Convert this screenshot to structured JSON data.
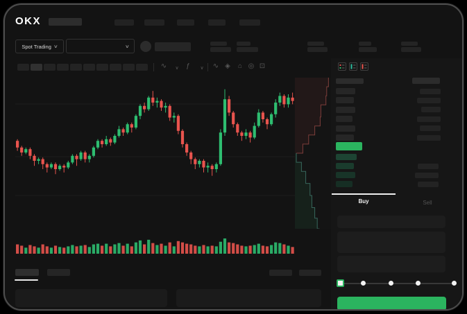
{
  "app": {
    "logo_text": "OKX"
  },
  "trade_header": {
    "market_type_label": "Spot Trading",
    "chevron_glyph": "∨"
  },
  "chart_toolbar": {
    "icons": [
      {
        "name": "curve-style-icon",
        "glyph": "∿"
      },
      {
        "name": "chevron-down-icon",
        "glyph": "∨"
      },
      {
        "name": "function-icon",
        "glyph": "ƒ"
      },
      {
        "name": "chevron-down-icon",
        "glyph": "∨"
      },
      {
        "name": "indicator-wave-icon",
        "glyph": "∿"
      },
      {
        "name": "compare-icon",
        "glyph": "◈"
      },
      {
        "name": "snapshot-icon",
        "glyph": "⌂"
      },
      {
        "name": "settings-icon",
        "glyph": "◎"
      },
      {
        "name": "fullscreen-icon",
        "glyph": "⊡"
      }
    ]
  },
  "order_form": {
    "buy_tab_label": "Buy",
    "sell_tab_label": "Sell"
  },
  "colors": {
    "up": "#2ebd70",
    "down": "#e8544e",
    "accent_green": "#2bb45f",
    "depth_ask_fill": "rgba(232,84,78,0.07)",
    "depth_ask_line": "rgba(205,95,90,0.55)",
    "depth_bid_fill": "rgba(46,189,112,0.08)",
    "depth_bid_line": "rgba(85,165,150,0.55)",
    "grid": "#1c1c1c"
  },
  "order_book": {
    "ask_rows": [
      {
        "price_w": 28,
        "amount_w": 30
      },
      {
        "price_w": 26,
        "amount_w": 34
      },
      {
        "price_w": 28,
        "amount_w": 28
      },
      {
        "price_w": 24,
        "amount_w": 34
      },
      {
        "price_w": 28,
        "amount_w": 30
      },
      {
        "price_w": 26,
        "amount_w": 34
      }
    ],
    "bid_rows": [
      {
        "price_w": 30,
        "amount_w": 0
      },
      {
        "price_w": 26,
        "amount_w": 30
      },
      {
        "price_w": 28,
        "amount_w": 34
      },
      {
        "price_w": 24,
        "amount_w": 30
      }
    ],
    "bid_colors": [
      "#1d4433",
      "#1a3c2d",
      "#183428",
      "#162e24"
    ]
  },
  "chart_data": {
    "type": "bar",
    "subtype": "candlestick-with-volume-and-depth",
    "title": "",
    "xlabel": "",
    "ylabel": "",
    "price_scale": [
      0,
      100
    ],
    "candles_ochl_note": "each entry is [open, close, low, high] on the 0-100 relative price scale",
    "candles": [
      [
        57,
        53,
        51,
        58
      ],
      [
        53,
        50,
        48,
        54
      ],
      [
        50,
        52,
        49,
        53
      ],
      [
        52,
        48,
        46,
        53
      ],
      [
        48,
        45,
        42,
        49
      ],
      [
        45,
        46,
        43,
        47
      ],
      [
        46,
        43,
        40,
        47
      ],
      [
        43,
        41,
        38,
        44
      ],
      [
        41,
        43,
        40,
        44
      ],
      [
        43,
        40,
        37,
        44
      ],
      [
        40,
        42,
        39,
        43
      ],
      [
        42,
        41,
        38,
        43
      ],
      [
        41,
        44,
        40,
        45
      ],
      [
        44,
        48,
        43,
        49
      ],
      [
        48,
        46,
        42,
        49
      ],
      [
        46,
        50,
        45,
        51
      ],
      [
        50,
        46,
        44,
        51
      ],
      [
        46,
        48,
        44,
        49
      ],
      [
        48,
        53,
        47,
        54
      ],
      [
        53,
        57,
        52,
        58
      ],
      [
        57,
        55,
        53,
        58
      ],
      [
        55,
        58,
        54,
        60
      ],
      [
        58,
        56,
        54,
        59
      ],
      [
        56,
        60,
        55,
        61
      ],
      [
        60,
        64,
        59,
        66
      ],
      [
        64,
        62,
        60,
        65
      ],
      [
        62,
        67,
        61,
        68
      ],
      [
        67,
        65,
        62,
        68
      ],
      [
        65,
        72,
        64,
        73
      ],
      [
        72,
        78,
        70,
        79
      ],
      [
        78,
        76,
        74,
        80
      ],
      [
        76,
        83,
        75,
        84
      ],
      [
        83,
        80,
        78,
        87
      ],
      [
        80,
        81,
        77,
        83
      ],
      [
        81,
        77,
        75,
        82
      ],
      [
        77,
        78,
        74,
        80
      ],
      [
        78,
        71,
        69,
        79
      ],
      [
        71,
        72,
        68,
        74
      ],
      [
        72,
        63,
        61,
        73
      ],
      [
        63,
        55,
        53,
        64
      ],
      [
        55,
        50,
        48,
        56
      ],
      [
        50,
        46,
        43,
        51
      ],
      [
        46,
        43,
        40,
        47
      ],
      [
        43,
        45,
        41,
        46
      ],
      [
        45,
        41,
        38,
        46
      ],
      [
        41,
        42,
        38,
        44
      ],
      [
        42,
        40,
        36,
        43
      ],
      [
        40,
        43,
        38,
        44
      ],
      [
        43,
        62,
        42,
        64
      ],
      [
        62,
        82,
        60,
        88
      ],
      [
        82,
        74,
        72,
        84
      ],
      [
        74,
        67,
        65,
        75
      ],
      [
        67,
        62,
        60,
        68
      ],
      [
        62,
        60,
        57,
        63
      ],
      [
        60,
        62,
        58,
        64
      ],
      [
        62,
        59,
        56,
        63
      ],
      [
        59,
        66,
        58,
        68
      ],
      [
        66,
        74,
        65,
        76
      ],
      [
        74,
        70,
        68,
        75
      ],
      [
        70,
        67,
        64,
        71
      ],
      [
        67,
        73,
        66,
        74
      ],
      [
        73,
        80,
        71,
        82
      ],
      [
        80,
        84,
        78,
        86
      ],
      [
        84,
        79,
        77,
        85
      ],
      [
        79,
        83,
        77,
        85
      ],
      [
        83,
        81,
        79,
        86
      ]
    ],
    "volumes": [
      55,
      45,
      30,
      50,
      40,
      30,
      55,
      40,
      30,
      45,
      35,
      30,
      40,
      50,
      40,
      45,
      50,
      35,
      55,
      60,
      45,
      60,
      40,
      55,
      65,
      45,
      60,
      40,
      70,
      85,
      55,
      90,
      65,
      50,
      60,
      45,
      70,
      40,
      80,
      70,
      60,
      55,
      45,
      40,
      50,
      40,
      45,
      40,
      75,
      100,
      70,
      65,
      55,
      45,
      40,
      45,
      50,
      60,
      45,
      40,
      50,
      70,
      65,
      55,
      45,
      35
    ],
    "depth": {
      "asks": [
        [
          0.93,
          0
        ],
        [
          0.88,
          0.06
        ],
        [
          0.86,
          0.12
        ],
        [
          0.72,
          0.18
        ],
        [
          0.7,
          0.26
        ],
        [
          0.55,
          0.32
        ],
        [
          0.38,
          0.38
        ],
        [
          0.22,
          0.44
        ],
        [
          0.04,
          0.5
        ]
      ],
      "bids": [
        [
          0.04,
          0.5
        ],
        [
          0.18,
          0.56
        ],
        [
          0.3,
          0.62
        ],
        [
          0.42,
          0.7
        ],
        [
          0.47,
          0.78
        ],
        [
          0.55,
          0.86
        ],
        [
          0.62,
          0.93
        ],
        [
          0.68,
          1.0
        ]
      ]
    },
    "grid": "horizontal-faint",
    "legend": "none"
  }
}
